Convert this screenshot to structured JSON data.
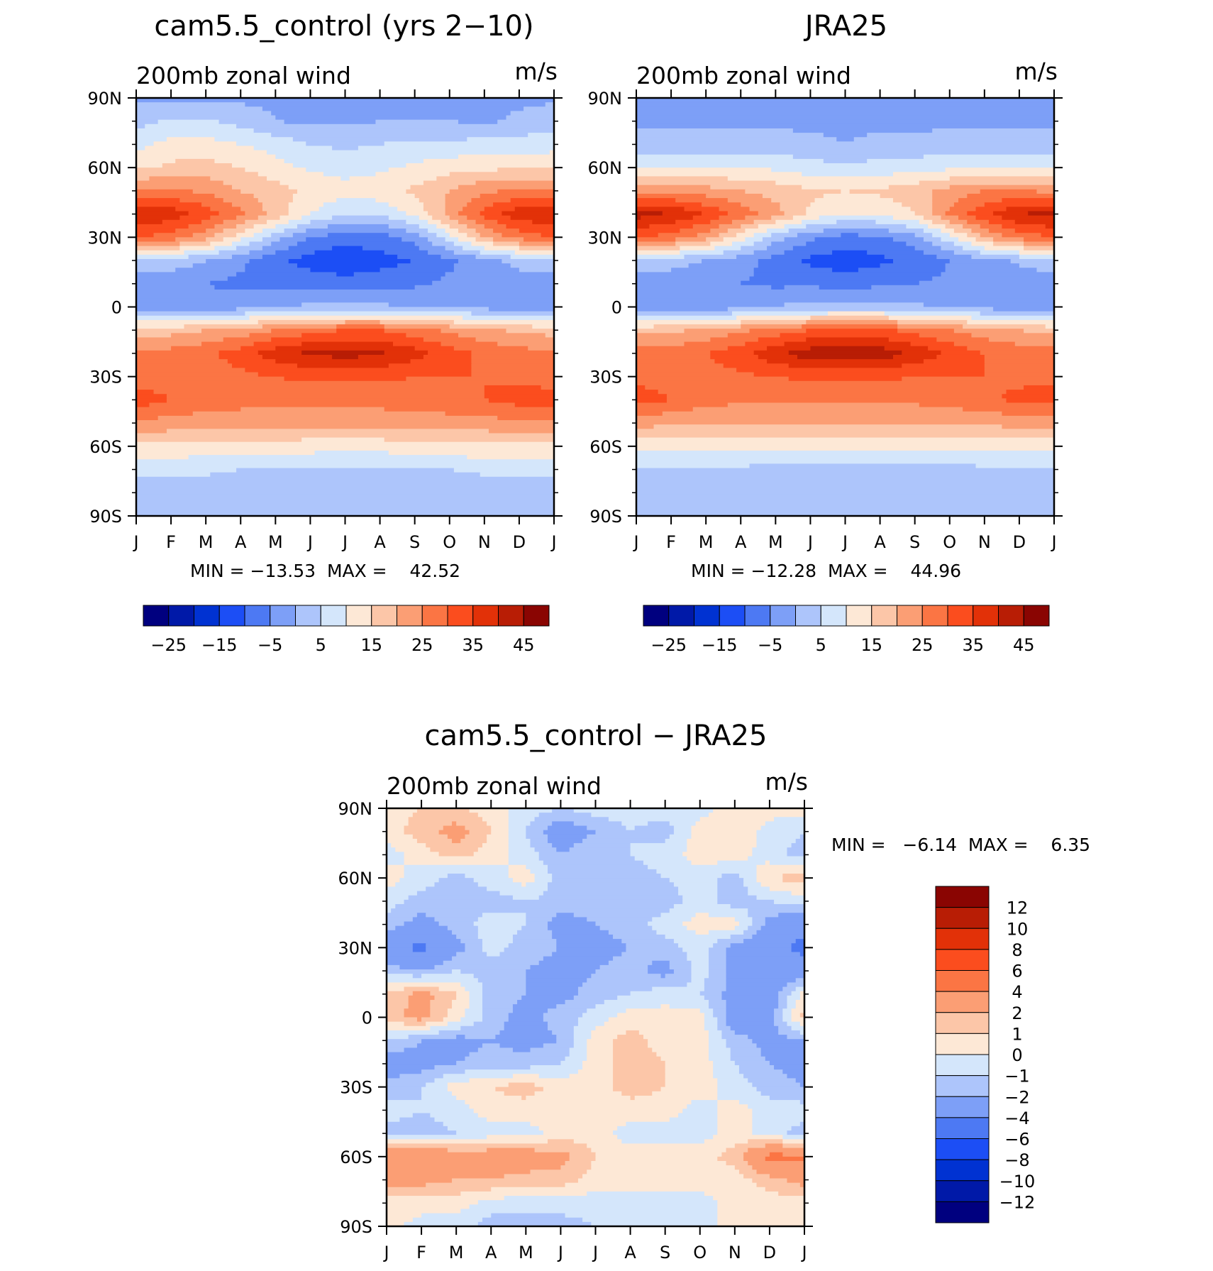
{
  "chart_data": [
    {
      "type": "heatmap",
      "title": "cam5.5_control (yrs 2−10)",
      "left_string": "200mb zonal wind",
      "right_string": "m/s",
      "x_labels": [
        "J",
        "F",
        "M",
        "A",
        "M",
        "J",
        "J",
        "A",
        "S",
        "O",
        "N",
        "D",
        "J"
      ],
      "y_labels": [
        "90N",
        "60N",
        "30N",
        "0",
        "30S",
        "60S",
        "90S"
      ],
      "ylim": [
        -90,
        90
      ],
      "stats": {
        "min_label": "MIN =",
        "min": "−13.53",
        "max_label": "MAX =",
        "max": "42.52"
      },
      "colorbar": {
        "orientation": "horizontal",
        "colors": [
          "#00007f",
          "#0019a8",
          "#0032d2",
          "#1c4ef5",
          "#4d79f3",
          "#7d9ff7",
          "#adc5fb",
          "#d4e6fb",
          "#fde8d6",
          "#fcc6a8",
          "#fb9e74",
          "#fb7544",
          "#fb4d1e",
          "#e23108",
          "#b81d05",
          "#8a0502"
        ],
        "tick_labels": [
          "−25",
          "−15",
          "−5",
          "5",
          "15",
          "25",
          "35",
          "45"
        ]
      },
      "field": {
        "description": "zonal wind in m/s, rows = latitude 90N..90S every 10 deg, columns = months J..D then J",
        "lat": [
          90,
          80,
          70,
          60,
          50,
          40,
          30,
          20,
          10,
          0,
          -10,
          -20,
          -30,
          -40,
          -50,
          -60,
          -70,
          -80,
          -90
        ],
        "values": [
          [
            -1,
            -1,
            -1,
            -1,
            -1,
            -1,
            -1,
            -1,
            -1,
            -1,
            -1,
            -1,
            -1
          ],
          [
            3,
            6,
            6,
            3,
            0,
            -1,
            -1,
            0,
            0,
            0,
            -1,
            1,
            3
          ],
          [
            8,
            12,
            12,
            10,
            8,
            5,
            4,
            5,
            6,
            6,
            7,
            7,
            8
          ],
          [
            14,
            16,
            17,
            15,
            12,
            9,
            8,
            9,
            11,
            13,
            14,
            14,
            14
          ],
          [
            26,
            26,
            24,
            20,
            17,
            14,
            12,
            13,
            16,
            20,
            24,
            26,
            26
          ],
          [
            40,
            38,
            33,
            26,
            18,
            10,
            5,
            6,
            11,
            22,
            32,
            38,
            40
          ],
          [
            30,
            28,
            22,
            12,
            2,
            -5,
            -8,
            -7,
            -3,
            8,
            20,
            27,
            30
          ],
          [
            4,
            3,
            0,
            -4,
            -9,
            -12,
            -14,
            -12,
            -10,
            -6,
            -2,
            2,
            4
          ],
          [
            -3,
            -4,
            -5,
            -6,
            -6,
            -7,
            -8,
            -7,
            -6,
            -4,
            -3,
            -3,
            -3
          ],
          [
            -5,
            -5,
            -4,
            -2,
            0,
            1,
            1,
            1,
            0,
            -1,
            -2,
            -4,
            -5
          ],
          [
            18,
            18,
            20,
            22,
            25,
            28,
            30,
            30,
            27,
            24,
            21,
            19,
            18
          ],
          [
            26,
            27,
            29,
            32,
            38,
            41,
            42,
            41,
            37,
            32,
            29,
            27,
            26
          ],
          [
            27,
            27,
            28,
            29,
            30,
            31,
            31,
            31,
            30,
            30,
            30,
            29,
            27
          ],
          [
            33,
            30,
            28,
            27,
            27,
            27,
            27,
            27,
            27,
            28,
            30,
            32,
            33
          ],
          [
            24,
            23,
            22,
            22,
            22,
            22,
            22,
            22,
            23,
            23,
            23,
            24,
            24
          ],
          [
            14,
            14,
            13,
            13,
            13,
            12,
            12,
            12,
            13,
            14,
            14,
            14,
            14
          ],
          [
            6,
            6,
            6,
            5,
            5,
            5,
            4,
            4,
            5,
            5,
            6,
            6,
            6
          ],
          [
            2,
            2,
            2,
            2,
            1,
            1,
            1,
            0,
            1,
            1,
            2,
            2,
            2
          ],
          [
            1,
            1,
            1,
            1,
            1,
            1,
            1,
            1,
            1,
            1,
            1,
            1,
            1
          ]
        ]
      }
    },
    {
      "type": "heatmap",
      "title": "JRA25",
      "left_string": "200mb zonal wind",
      "right_string": "m/s",
      "x_labels": [
        "J",
        "F",
        "M",
        "A",
        "M",
        "J",
        "J",
        "A",
        "S",
        "O",
        "N",
        "D",
        "J"
      ],
      "y_labels": [
        "90N",
        "60N",
        "30N",
        "0",
        "30S",
        "60S",
        "90S"
      ],
      "ylim": [
        -90,
        90
      ],
      "stats": {
        "min_label": "MIN =",
        "min": "−12.28",
        "max_label": "MAX =",
        "max": "44.96"
      },
      "colorbar": {
        "orientation": "horizontal",
        "colors": [
          "#00007f",
          "#0019a8",
          "#0032d2",
          "#1c4ef5",
          "#4d79f3",
          "#7d9ff7",
          "#adc5fb",
          "#d4e6fb",
          "#fde8d6",
          "#fcc6a8",
          "#fb9e74",
          "#fb7544",
          "#fb4d1e",
          "#e23108",
          "#b81d05",
          "#8a0502"
        ],
        "tick_labels": [
          "−25",
          "−15",
          "−5",
          "5",
          "15",
          "25",
          "35",
          "45"
        ]
      },
      "field": {
        "description": "zonal wind in m/s, rows = latitude 90N..90S every 10 deg, columns = months J..D then J",
        "lat": [
          90,
          80,
          70,
          60,
          50,
          40,
          30,
          20,
          10,
          0,
          -10,
          -20,
          -30,
          -40,
          -50,
          -60,
          -70,
          -80,
          -90
        ],
        "values": [
          [
            -1,
            -1,
            -1,
            -1,
            -1,
            -1,
            -1,
            -1,
            -1,
            -1,
            -1,
            -1,
            -1
          ],
          [
            -1,
            -1,
            -1,
            -1,
            -1,
            -1,
            -1,
            -1,
            -1,
            -1,
            -1,
            -1,
            -1
          ],
          [
            2,
            2,
            2,
            2,
            2,
            1,
            0,
            1,
            1,
            2,
            2,
            2,
            2
          ],
          [
            9,
            10,
            10,
            10,
            9,
            7,
            6,
            7,
            8,
            9,
            10,
            10,
            9
          ],
          [
            24,
            24,
            22,
            20,
            18,
            16,
            15,
            16,
            18,
            22,
            25,
            25,
            24
          ],
          [
            42,
            40,
            35,
            28,
            22,
            14,
            10,
            11,
            15,
            26,
            34,
            40,
            42
          ],
          [
            30,
            28,
            22,
            12,
            2,
            -4,
            -7,
            -6,
            -2,
            8,
            20,
            27,
            30
          ],
          [
            3,
            2,
            0,
            -3,
            -7,
            -11,
            -13,
            -11,
            -9,
            -5,
            -2,
            1,
            3
          ],
          [
            -3,
            -3,
            -4,
            -5,
            -6,
            -6,
            -7,
            -6,
            -5,
            -4,
            -3,
            -3,
            -3
          ],
          [
            -4,
            -4,
            -3,
            -2,
            0,
            2,
            2,
            2,
            1,
            -1,
            -2,
            -3,
            -4
          ],
          [
            18,
            19,
            21,
            24,
            27,
            30,
            31,
            31,
            28,
            25,
            22,
            20,
            18
          ],
          [
            27,
            28,
            30,
            33,
            39,
            43,
            44,
            43,
            39,
            34,
            30,
            28,
            27
          ],
          [
            29,
            28,
            28,
            29,
            30,
            31,
            31,
            31,
            30,
            30,
            30,
            29,
            29
          ],
          [
            32,
            30,
            27,
            26,
            26,
            26,
            26,
            26,
            26,
            27,
            29,
            31,
            32
          ],
          [
            22,
            21,
            20,
            20,
            21,
            20,
            20,
            20,
            21,
            21,
            21,
            22,
            22
          ],
          [
            12,
            12,
            12,
            12,
            12,
            11,
            11,
            11,
            11,
            12,
            12,
            12,
            12
          ],
          [
            4,
            4,
            4,
            4,
            3,
            3,
            3,
            3,
            3,
            3,
            4,
            4,
            4
          ],
          [
            2,
            2,
            2,
            2,
            2,
            1,
            1,
            1,
            2,
            2,
            2,
            2,
            2
          ],
          [
            1,
            1,
            1,
            1,
            1,
            1,
            1,
            1,
            1,
            1,
            1,
            1,
            1
          ]
        ]
      }
    },
    {
      "type": "heatmap",
      "title": "cam5.5_control − JRA25",
      "left_string": "200mb zonal wind",
      "right_string": "m/s",
      "x_labels": [
        "J",
        "F",
        "M",
        "A",
        "M",
        "J",
        "J",
        "A",
        "S",
        "O",
        "N",
        "D",
        "J"
      ],
      "y_labels": [
        "90N",
        "60N",
        "30N",
        "0",
        "30S",
        "60S",
        "90S"
      ],
      "ylim": [
        -90,
        90
      ],
      "stats": {
        "min_label": "MIN =",
        "min": "−6.14",
        "max_label": "MAX =",
        "max": "6.35"
      },
      "colorbar": {
        "orientation": "vertical",
        "colors": [
          "#00007f",
          "#0019a8",
          "#0032d2",
          "#1c4ef5",
          "#4d79f3",
          "#7d9ff7",
          "#adc5fb",
          "#d4e6fb",
          "#fde8d6",
          "#fcc6a8",
          "#fb9e74",
          "#fb7544",
          "#fb4d1e",
          "#e23108",
          "#b81d05",
          "#8a0502"
        ],
        "tick_labels": [
          "12",
          "10",
          "8",
          "6",
          "4",
          "2",
          "1",
          "0",
          "−1",
          "−2",
          "−4",
          "−6",
          "−8",
          "−10",
          "−12"
        ]
      },
      "field": {
        "description": "difference in m/s, rows = latitude 90N..90S every 10 deg, columns = months J..D then J",
        "lat": [
          90,
          80,
          70,
          60,
          50,
          40,
          30,
          20,
          10,
          0,
          -10,
          -20,
          -30,
          -40,
          -50,
          -60,
          -70,
          -80,
          -90
        ],
        "values": [
          [
            0.5,
            1.0,
            1.2,
            0.5,
            -0.5,
            -1.0,
            -0.5,
            -0.5,
            -0.5,
            -0.5,
            0.5,
            0.5,
            0.5
          ],
          [
            0.5,
            1.5,
            2.5,
            1.0,
            -1.0,
            -3.0,
            -2.0,
            -1.0,
            -1.5,
            0.5,
            1.0,
            -0.5,
            -1.0
          ],
          [
            -0.5,
            0.5,
            1.5,
            0.5,
            -0.5,
            -2.0,
            -1.0,
            -1.0,
            -0.5,
            0.5,
            0.5,
            -0.5,
            -1.5
          ],
          [
            0.5,
            -0.5,
            -1.5,
            -0.5,
            0.5,
            -1.5,
            -1.0,
            -1.5,
            -1.0,
            -0.5,
            -1.5,
            1.0,
            1.5
          ],
          [
            -0.5,
            -1.5,
            -1.0,
            -1.5,
            -1.0,
            -1.5,
            -1.5,
            -2.0,
            -1.5,
            -0.5,
            -1.5,
            -1.0,
            -0.5
          ],
          [
            -1.5,
            -2.5,
            -1.5,
            -0.5,
            -1.0,
            -2.5,
            -2.0,
            -1.5,
            -0.5,
            0.5,
            0.5,
            -2.5,
            -3.5
          ],
          [
            -3.5,
            -4.5,
            -2.5,
            -0.5,
            -1.5,
            -2.0,
            -2.5,
            -2.0,
            -1.5,
            -0.5,
            -2.5,
            -3.5,
            -4.5
          ],
          [
            -1.5,
            -2.0,
            -1.0,
            -1.5,
            -2.0,
            -2.5,
            -2.0,
            -1.5,
            -2.5,
            -0.5,
            -2.5,
            -3.5,
            -3.0
          ],
          [
            1.0,
            2.5,
            1.0,
            -1.5,
            -2.0,
            -2.5,
            -1.5,
            -1.0,
            -0.5,
            -1.0,
            -2.5,
            -3.0,
            0.5
          ],
          [
            1.5,
            2.5,
            0.5,
            -1.5,
            -2.5,
            -1.5,
            -0.5,
            0.5,
            0.5,
            0.5,
            -3.0,
            -2.5,
            1.5
          ],
          [
            -1.0,
            -2.0,
            -2.5,
            -2.0,
            -2.5,
            -2.0,
            0.5,
            1.5,
            0.5,
            0.5,
            -1.5,
            -2.5,
            -2.0
          ],
          [
            -3.0,
            -2.5,
            -2.0,
            -1.5,
            -1.5,
            -1.0,
            0.5,
            1.5,
            1.0,
            0.5,
            -1.0,
            -2.0,
            -2.5
          ],
          [
            -1.5,
            -1.0,
            0.5,
            1.0,
            1.5,
            0.5,
            0.5,
            1.5,
            1.0,
            0.5,
            -0.5,
            -1.5,
            -2.0
          ],
          [
            -0.5,
            -1.0,
            -0.5,
            0.5,
            0.5,
            0.5,
            0.5,
            0.5,
            0.5,
            -0.5,
            0.5,
            -0.5,
            -0.5
          ],
          [
            -1.5,
            -1.5,
            -1.0,
            -0.5,
            -0.5,
            0.5,
            0.5,
            -0.5,
            -0.5,
            -0.5,
            0.5,
            -0.5,
            -1.5
          ],
          [
            4.0,
            4.0,
            3.0,
            3.0,
            3.0,
            2.5,
            1.0,
            0.5,
            0.5,
            0.5,
            1.5,
            4.5,
            4.5
          ],
          [
            2.5,
            2.5,
            2.0,
            2.0,
            1.5,
            1.5,
            0.5,
            0.5,
            0.5,
            0.5,
            0.5,
            1.5,
            2.5
          ],
          [
            0.5,
            0.5,
            0.5,
            -0.5,
            -0.5,
            -0.5,
            -0.5,
            -0.5,
            -0.5,
            -0.5,
            0.5,
            0.5,
            0.5
          ],
          [
            0.5,
            -0.5,
            -0.5,
            -1.5,
            -1.5,
            -1.5,
            -1.0,
            -1.0,
            -1.0,
            -0.5,
            0.5,
            0.5,
            0.5
          ]
        ]
      }
    }
  ]
}
